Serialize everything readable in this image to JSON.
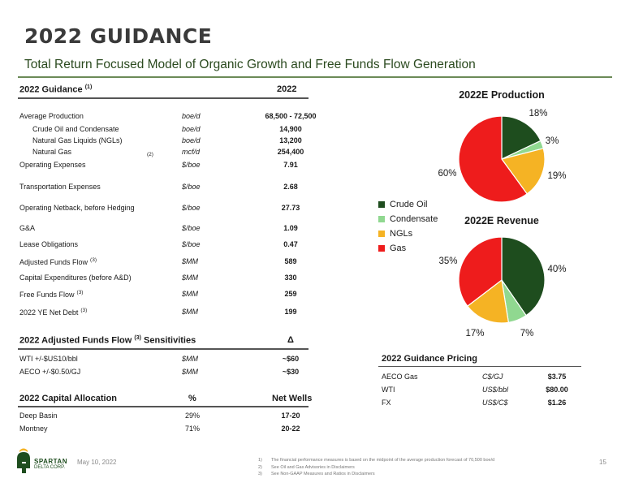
{
  "title": "2022 GUIDANCE",
  "subtitle": "Total Return Focused Model of Organic Growth and Free Funds Flow Generation",
  "guidance": {
    "header_label": "2022 Guidance",
    "header_note": "(1)",
    "header_year": "2022",
    "rows": [
      {
        "label": "Average Production",
        "note": "",
        "unit": "boe/d",
        "value": "68,500 - 72,500"
      },
      {
        "label": "Crude Oil and Condensate",
        "note": "",
        "unit": "boe/d",
        "value": "14,900"
      },
      {
        "label": "Natural Gas Liquids (NGLs)",
        "note": "",
        "unit": "boe/d",
        "value": "13,200"
      },
      {
        "label": "Natural Gas",
        "note": "(2)",
        "unit": "mcf/d",
        "value": "254,400"
      },
      {
        "label": "Operating Expenses",
        "note": "",
        "unit": "$/boe",
        "value": "7.91"
      },
      {
        "label": "Transportation Expenses",
        "note": "",
        "unit": "$/boe",
        "value": "2.68"
      },
      {
        "label": "Operating Netback, before Hedging",
        "note": "",
        "unit": "$/boe",
        "value": "27.73"
      },
      {
        "label": "G&A",
        "note": "",
        "unit": "$/boe",
        "value": "1.09"
      },
      {
        "label": "Lease Obligations",
        "note": "",
        "unit": "$/boe",
        "value": "0.47"
      },
      {
        "label": "Adjusted Funds Flow",
        "note": "(3)",
        "unit": "$MM",
        "value": "589"
      },
      {
        "label": "Capital Expenditures (before A&D)",
        "note": "",
        "unit": "$MM",
        "value": "330"
      },
      {
        "label": "Free Funds Flow",
        "note": "(3)",
        "unit": "$MM",
        "value": "259"
      },
      {
        "label": "2022 YE Net Debt",
        "note": "(3)",
        "unit": "$MM",
        "value": "199"
      }
    ]
  },
  "sensitivities": {
    "header_label": "2022 Adjusted Funds Flow",
    "header_note": "(3)",
    "header_suffix": "Sensitivities",
    "header_delta": "Δ",
    "rows": [
      {
        "label": "WTI +/-$US10/bbl",
        "unit": "$MM",
        "value": "~$60"
      },
      {
        "label": "AECO +/-$0.50/GJ",
        "unit": "$MM",
        "value": "~$30"
      }
    ]
  },
  "allocation": {
    "header_label": "2022 Capital Allocation",
    "header_pct": "%",
    "header_wells": "Net Wells",
    "rows": [
      {
        "label": "Deep Basin",
        "pct": "29%",
        "wells": "17-20"
      },
      {
        "label": "Montney",
        "pct": "71%",
        "wells": "20-22"
      }
    ]
  },
  "pricing": {
    "header": "2022 Guidance Pricing",
    "rows": [
      {
        "label": "AECO Gas",
        "unit": "C$/GJ",
        "value": "$3.75"
      },
      {
        "label": "WTI",
        "unit": "US$/bbl",
        "value": "$80.00"
      },
      {
        "label": "FX",
        "unit": "US$/C$",
        "value": "$1.26"
      }
    ]
  },
  "chart_data": [
    {
      "type": "pie",
      "title": "2022E Production",
      "categories": [
        "Crude Oil",
        "Condensate",
        "NGLs",
        "Gas"
      ],
      "values": [
        18,
        3,
        19,
        60
      ],
      "labels": [
        "18%",
        "3%",
        "19%",
        "60%"
      ],
      "colors": [
        "#1e4d1e",
        "#90d890",
        "#f5b324",
        "#ee1c1c"
      ]
    },
    {
      "type": "pie",
      "title": "2022E Revenue",
      "categories": [
        "Crude Oil",
        "Condensate",
        "NGLs",
        "Gas"
      ],
      "values": [
        40,
        7,
        17,
        35
      ],
      "labels": [
        "40%",
        "7%",
        "17%",
        "35%"
      ],
      "colors": [
        "#1e4d1e",
        "#90d890",
        "#f5b324",
        "#ee1c1c"
      ]
    }
  ],
  "legend": [
    {
      "name": "Crude Oil",
      "color": "#1e4d1e"
    },
    {
      "name": "Condensate",
      "color": "#90d890"
    },
    {
      "name": "NGLs",
      "color": "#f5b324"
    },
    {
      "name": "Gas",
      "color": "#ee1c1c"
    }
  ],
  "footer": {
    "logo_line1": "SPARTAN",
    "logo_line2": "DELTA CORP.",
    "date": "May 10, 2022",
    "page": "15",
    "notes": [
      {
        "num": "1)",
        "text": "The financial performance measures is based on the midpoint of the average production forecast of 70,500 boe/d"
      },
      {
        "num": "2)",
        "text": "See Oil and Gas Advisories in Disclaimers"
      },
      {
        "num": "3)",
        "text": "See Non-GAAP Measures and Ratios in Disclaimers"
      }
    ]
  }
}
